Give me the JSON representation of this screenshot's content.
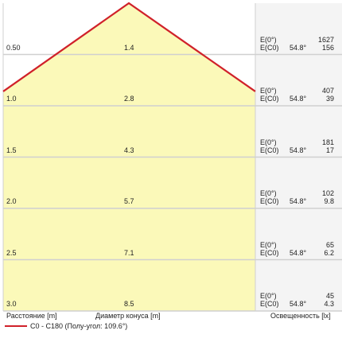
{
  "chart_data": {
    "type": "area",
    "title": "",
    "half_angle_label": "C0 - C180 (Полу-угол: 109.6°)",
    "columns": {
      "distance": "Расстояние [m]",
      "diameter": "Диаметр конуса [m]",
      "illuminance": "Освещенность [lx]"
    },
    "rows": [
      {
        "distance": "0.50",
        "diameter": "1.4",
        "e0_label": "E(0°)",
        "ec0_label": "E(C0)",
        "angle": "54.8°",
        "e0": "1627",
        "ec0": "156"
      },
      {
        "distance": "1.0",
        "diameter": "2.8",
        "e0_label": "E(0°)",
        "ec0_label": "E(C0)",
        "angle": "54.8°",
        "e0": "407",
        "ec0": "39"
      },
      {
        "distance": "1.5",
        "diameter": "4.3",
        "e0_label": "E(0°)",
        "ec0_label": "E(C0)",
        "angle": "54.8°",
        "e0": "181",
        "ec0": "17"
      },
      {
        "distance": "2.0",
        "diameter": "5.7",
        "e0_label": "E(0°)",
        "ec0_label": "E(C0)",
        "angle": "54.8°",
        "e0": "102",
        "ec0": "9.8"
      },
      {
        "distance": "2.5",
        "diameter": "7.1",
        "e0_label": "E(0°)",
        "ec0_label": "E(C0)",
        "angle": "54.8°",
        "e0": "65",
        "ec0": "6.2"
      },
      {
        "distance": "3.0",
        "diameter": "8.5",
        "e0_label": "E(0°)",
        "ec0_label": "E(C0)",
        "angle": "54.8°",
        "e0": "45",
        "ec0": "4.3"
      }
    ],
    "colors": {
      "fill": "#fbf9b9",
      "line": "#d0212a",
      "grid": "#d0d0d0",
      "panel_bg": "#f4f4f4"
    }
  }
}
